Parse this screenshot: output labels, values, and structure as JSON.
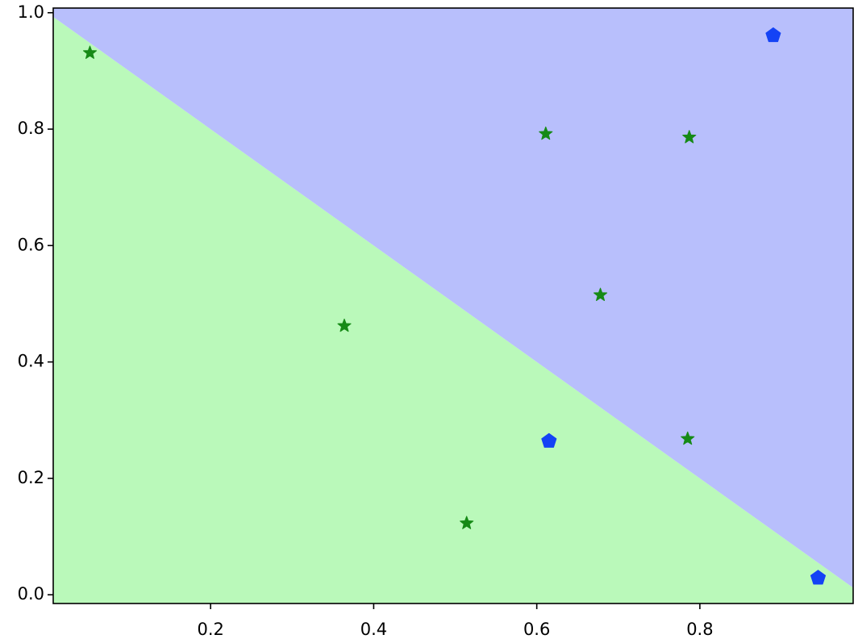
{
  "chart_data": {
    "type": "scatter",
    "xlim": [
      0.007,
      0.988
    ],
    "ylim": [
      -0.015,
      1.008
    ],
    "xticks": [
      0.2,
      0.4,
      0.6,
      0.8
    ],
    "yticks": [
      {
        "value": 0,
        "label": "0.0"
      },
      0.2,
      0.4,
      0.6,
      0.8,
      {
        "value": 1,
        "label": "1.0"
      }
    ],
    "grid": false,
    "boundary": {
      "x": [
        0.007,
        0.988
      ],
      "y": [
        0.993,
        0.012
      ],
      "above_color": "#b8bffc",
      "below_color": "#baf9ba"
    },
    "series": [
      {
        "marker": "star",
        "color": "#168a16",
        "x": [
          0.052,
          0.611,
          0.787,
          0.678,
          0.364,
          0.785,
          0.514
        ],
        "values": [
          0.931,
          0.792,
          0.786,
          0.515,
          0.462,
          0.268,
          0.123
        ]
      },
      {
        "marker": "pentagon",
        "color": "#1443f5",
        "x": [
          0.89,
          0.615,
          0.945
        ],
        "values": [
          0.961,
          0.264,
          0.029
        ]
      }
    ]
  }
}
